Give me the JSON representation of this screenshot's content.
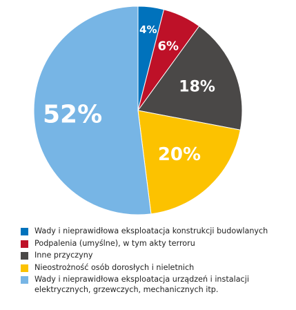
{
  "chart_data": {
    "type": "pie",
    "slices": [
      {
        "label": "Wady i nieprawidłowa eksploatacja konstrukcji budowlanych",
        "value": 4,
        "display": "4%",
        "color": "#0072bc"
      },
      {
        "label": "Podpalenia (umyślne), w tym akty terroru",
        "value": 6,
        "display": "6%",
        "color": "#be1128"
      },
      {
        "label": "Inne przyczyny",
        "value": 18,
        "display": "18%",
        "color": "#4a4847"
      },
      {
        "label": "Nieostrożność osób dorosłych i nieletnich",
        "value": 20,
        "display": "20%",
        "color": "#fcc200"
      },
      {
        "label": "Wady i nieprawidłowa eksploatacja urządzeń i instalacji elektrycznych, grzewczych, mechanicznych itp.",
        "value": 52,
        "display": "52%",
        "color": "#77b5e5"
      }
    ],
    "legend_position": "bottom",
    "start_angle": "top",
    "direction": "clockwise"
  }
}
